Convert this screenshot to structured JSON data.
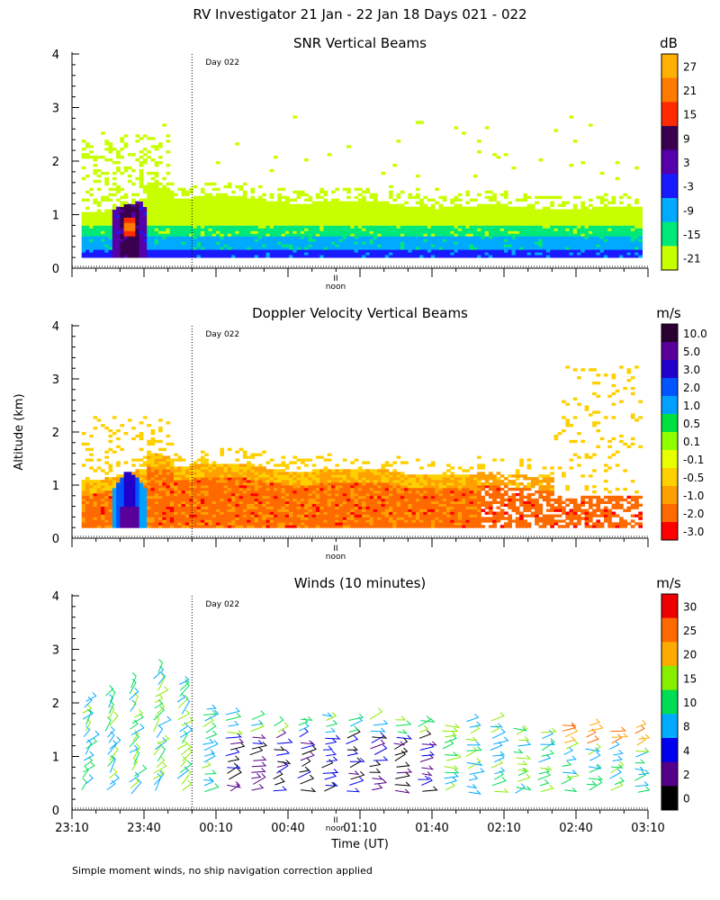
{
  "figure": {
    "title": "RV Investigator  21 Jan - 22 Jan 18 Days 021 - 022",
    "ylabel": "Altitude (km)",
    "xlabel": "Time (UT)",
    "footnote": "Simple moment winds, no ship navigation correction applied",
    "day_marker_label": "Day 022",
    "noon_label": "noon",
    "noon_mark": "II",
    "y_ticks": [
      "0",
      "1",
      "2",
      "3",
      "4"
    ],
    "x_tick_labels": [
      "23:10",
      "23:40",
      "00:10",
      "00:40",
      "01:10",
      "01:40",
      "02:10",
      "02:40",
      "03:10"
    ]
  },
  "chart_data": [
    {
      "type": "heatmap",
      "title": "SNR Vertical Beams",
      "colorbar_unit": "dB",
      "colorbar_labels": [
        "27",
        "21",
        "15",
        "9",
        "3",
        "-3",
        "-9",
        "-15",
        "-21"
      ],
      "colorbar_colors": [
        "#ffb000",
        "#ff7a00",
        "#ff2a00",
        "#3a0050",
        "#5500aa",
        "#1a1aff",
        "#00aaff",
        "#00e878",
        "#c8ff00"
      ],
      "ylim": [
        0,
        4
      ],
      "y_unit": "km",
      "x_range": [
        "23:10",
        "03:10"
      ],
      "day_boundary": "00:00",
      "profile_note": "Strong returns 0.2-1.6 km near 23:30-23:40 (peak >21 dB at ~0.75 km); boundary layer echo 0.2-1.3 km thereafter; scattered echoes to ~2.4 km"
    },
    {
      "type": "heatmap",
      "title": "Doppler Velocity Vertical Beams",
      "colorbar_unit": "m/s",
      "colorbar_labels": [
        "10.0",
        "5.0",
        "3.0",
        "2.0",
        "1.0",
        "0.5",
        "0.1",
        "-0.1",
        "-0.5",
        "-1.0",
        "-2.0",
        "-3.0"
      ],
      "colorbar_colors": [
        "#2a0030",
        "#5a009a",
        "#2200cc",
        "#0055ff",
        "#00a0ff",
        "#00e040",
        "#90ff00",
        "#e8ff00",
        "#ffd000",
        "#ffa000",
        "#ff6a00",
        "#ff0000"
      ],
      "ylim": [
        0,
        4
      ],
      "y_unit": "km",
      "x_range": [
        "23:10",
        "03:10"
      ],
      "day_boundary": "00:00",
      "profile_note": "Mostly -1.0 to -2.0 m/s below ~1.3 km; upward velocities (1-10 m/s) near 23:30-23:40 below 1.6 km"
    },
    {
      "type": "scatter",
      "title": "Winds (10 minutes)",
      "colorbar_unit": "m/s",
      "colorbar_labels": [
        "30",
        "25",
        "20",
        "15",
        "10",
        "8",
        "4",
        "2",
        "0"
      ],
      "colorbar_colors": [
        "#ee0000",
        "#ff6a00",
        "#ffaa00",
        "#88ee00",
        "#00dd55",
        "#00aaff",
        "#0000ee",
        "#550088",
        "#000000"
      ],
      "ylim": [
        0,
        4
      ],
      "y_unit": "km",
      "x_range": [
        "23:10",
        "03:10"
      ],
      "day_boundary": "00:00",
      "profile_note": "Wind barbs every 10 minutes, 0.2-2.8 km, speeds mostly 8-20 m/s"
    }
  ]
}
